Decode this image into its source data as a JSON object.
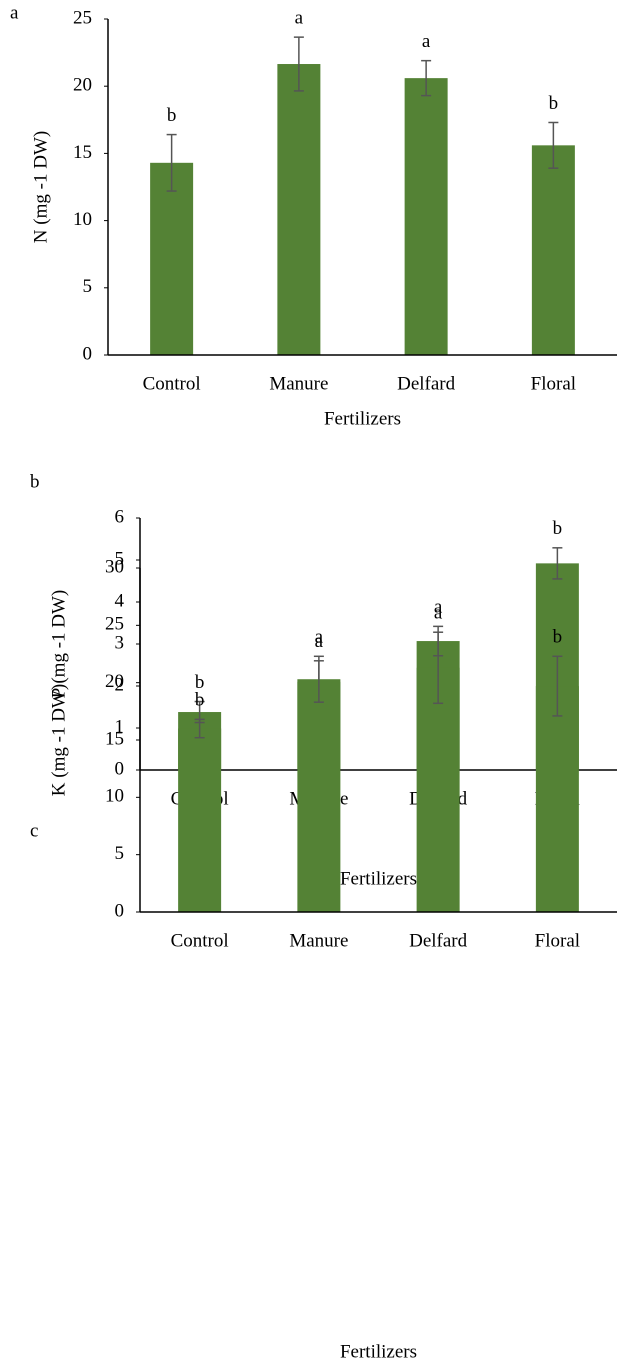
{
  "chart_data": [
    {
      "type": "bar",
      "panel_label": "a",
      "y_label": "N (mg -1 DW)",
      "x_label": "Fertilizers",
      "categories": [
        "Control",
        "Manure",
        "Delfard",
        "Floral"
      ],
      "values": [
        14.3,
        21.65,
        20.6,
        15.6
      ],
      "errors": [
        2.1,
        2.0,
        1.3,
        1.7
      ],
      "annotations": [
        "b",
        "a",
        "a",
        "b"
      ],
      "color": "#548235",
      "ylim": [
        0,
        25
      ],
      "yticks": [
        0,
        5,
        10,
        15,
        20,
        25
      ]
    },
    {
      "type": "bar",
      "panel_label": "b",
      "y_label": "P (mg -1 DW)",
      "x_label": "Fertilizers",
      "categories": [
        "Control",
        "Manure",
        "Delfard",
        "Floral"
      ],
      "values": [
        1.38,
        2.1,
        3.07,
        4.92
      ],
      "errors": [
        0.25,
        0.5,
        0.35,
        0.37
      ],
      "annotations": [
        "b",
        "a",
        "a",
        "b"
      ],
      "color": "#548235",
      "ylim": [
        0,
        6
      ],
      "yticks": [
        0,
        1,
        2,
        3,
        4,
        5,
        6
      ]
    },
    {
      "type": "bar",
      "panel_label": "c",
      "y_label": "K (mg -1 DW)",
      "x_label": "Fertilizers",
      "categories": [
        "Control",
        "Manure",
        "Delfard",
        "Floral"
      ],
      "values": [
        16.0,
        20.3,
        21.3,
        19.7
      ],
      "errors": [
        0.8,
        2.0,
        3.1,
        2.6
      ],
      "annotations": [
        "b",
        "a",
        "a",
        "b"
      ],
      "color": "#548235",
      "ylim": [
        0,
        30
      ],
      "yticks": [
        0,
        5,
        10,
        15,
        20,
        25,
        30
      ]
    }
  ]
}
